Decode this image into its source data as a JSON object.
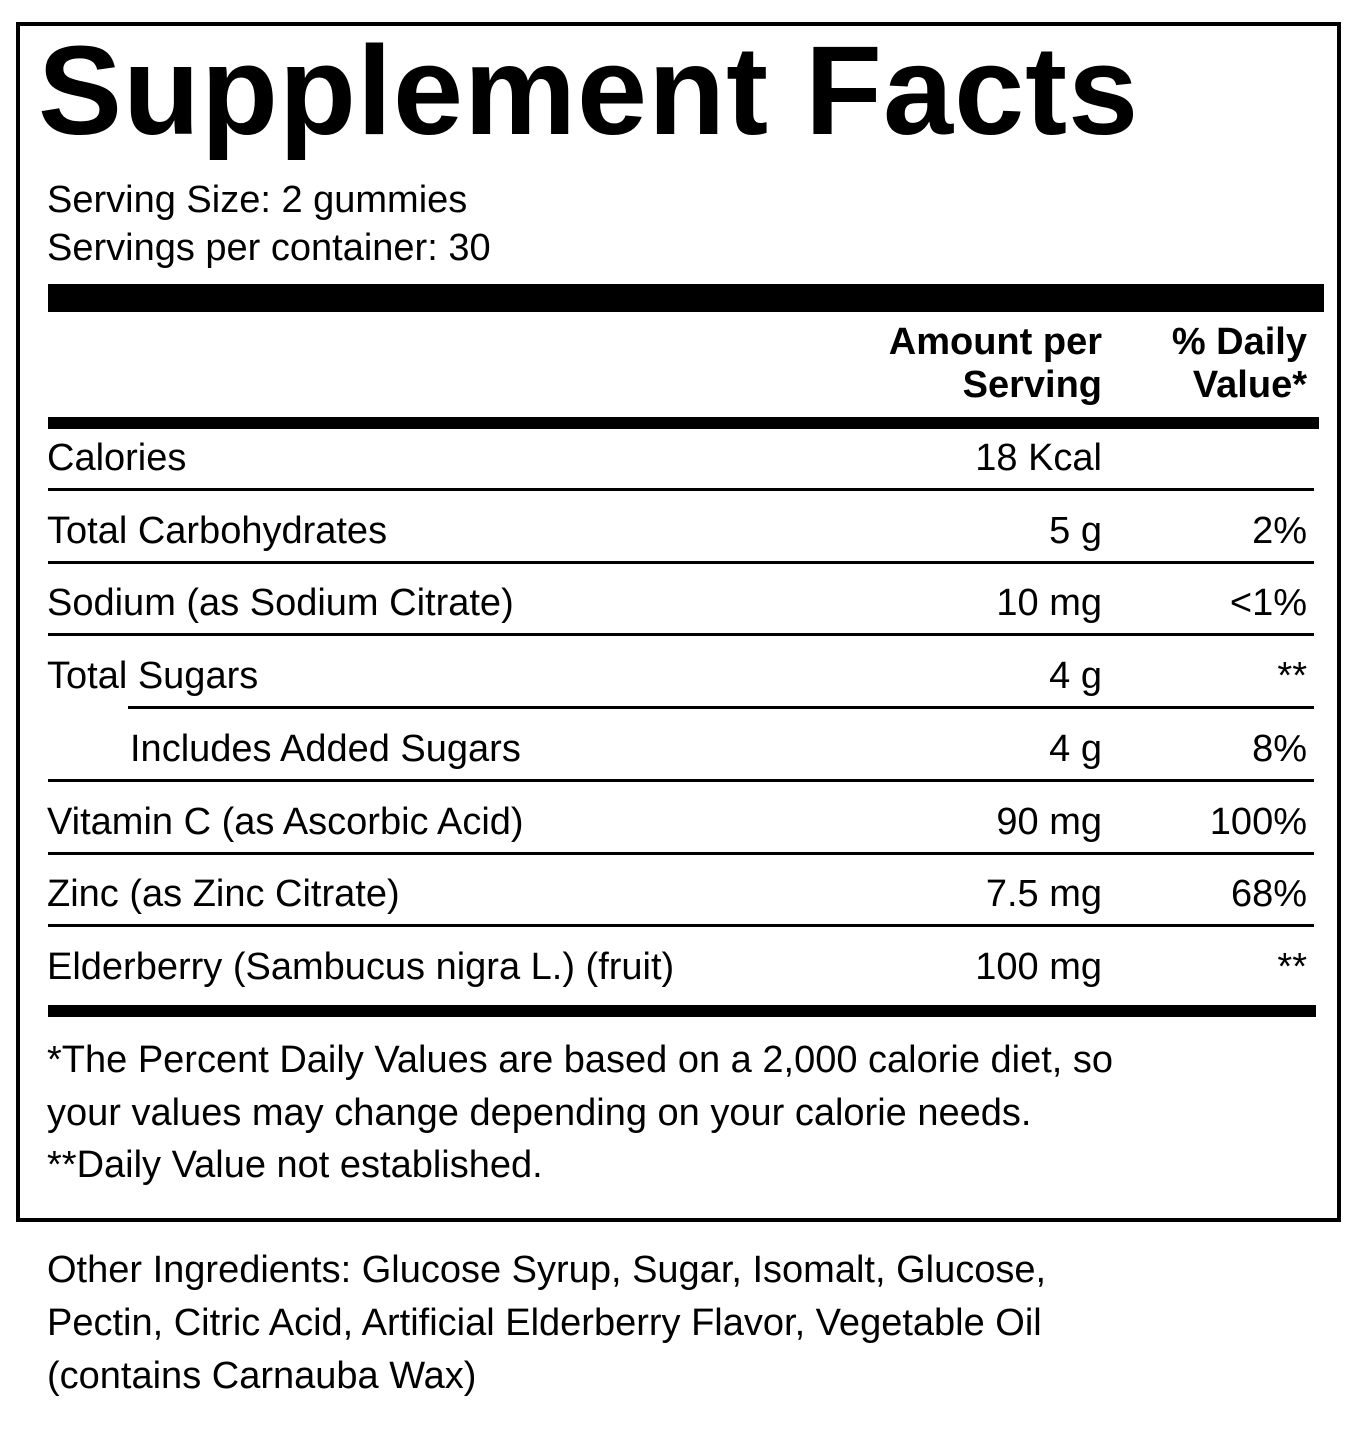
{
  "title": "Supplement Facts",
  "serving_size": "Serving Size: 2 gummies",
  "servings_per_container": "Servings per container: 30",
  "table": {
    "header": {
      "amount": [
        "Amount per",
        "Serving"
      ],
      "daily_value": [
        "% Daily",
        "Value*"
      ]
    },
    "rows": [
      {
        "name": "Calories",
        "amount": "18 Kcal"
      },
      {
        "name": "Total Carbohydrates",
        "amount": "5 g",
        "daily_value": "2%"
      },
      {
        "name": "Sodium (as Sodium Citrate)",
        "amount": "10 mg",
        "daily_value": "<1%"
      },
      {
        "name": "Total Sugars",
        "amount": "4 g",
        "daily_value": "**"
      },
      {
        "name": "Includes Added Sugars",
        "amount": "4 g",
        "daily_value": "8%",
        "indent": true
      },
      {
        "name": "Vitamin C (as Ascorbic Acid)",
        "amount": "90 mg",
        "daily_value": "100%"
      },
      {
        "name": "Zinc (as Zinc Citrate)",
        "amount": "7.5 mg",
        "daily_value": "68%"
      },
      {
        "name": "Elderberry (Sambucus nigra L.) (fruit)",
        "amount": "100 mg",
        "daily_value": "**"
      }
    ]
  },
  "footnotes": [
    "*The Percent Daily Values are based on a 2,000 calorie diet, so",
    "your values may change depending on your calorie needs.",
    "**Daily Value not established."
  ],
  "other_ingredients": [
    "Other Ingredients: Glucose Syrup, Sugar, Isomalt, Glucose,",
    "Pectin, Citric Acid, Artificial Elderberry Flavor, Vegetable Oil",
    "(contains Carnauba Wax)"
  ]
}
